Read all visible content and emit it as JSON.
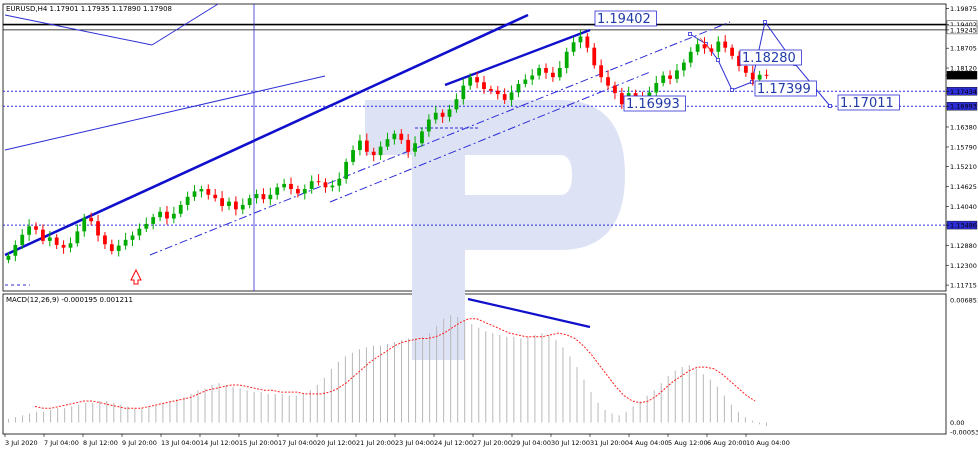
{
  "header": {
    "symbol_line": "EURUSD,H4  1.17901 1.17935 1.17890 1.17908",
    "macd_line": "MACD(12,26,9) -0.000195 0.001211"
  },
  "colors": {
    "bull": "#00aa00",
    "bear": "#ff0000",
    "trend": "#1010cc",
    "level": "#2d2dd6",
    "hist": "#b8b8b8",
    "signal": "#ff2020",
    "watermark": "#dfe4f5"
  },
  "chart_data": [
    {
      "type": "candlestick",
      "title": "EURUSD,H4",
      "ylim": [
        1.116,
        1.1995
      ],
      "y_ticks": [
        "1.19875",
        "1.19402",
        "1.19245",
        "1.18705",
        "1.18120",
        "1.17908",
        "1.17434",
        "1.16993",
        "1.16380",
        "1.15790",
        "1.15210",
        "1.14625",
        "1.14040",
        "1.13486",
        "1.12880",
        "1.12300",
        "1.11715"
      ],
      "x_ticks": [
        "3 Jul 2020",
        "7 Jul 04:00",
        "8 Jul 12:00",
        "9 Jul 20:00",
        "13 Jul 04:00",
        "14 Jul 12:00",
        "15 Jul 20:00",
        "17 Jul 04:00",
        "20 Jul 12:00",
        "21 Jul 20:00",
        "23 Jul 04:00",
        "24 Jul 12:00",
        "27 Jul 20:00",
        "29 Jul 04:00",
        "30 Jul 12:00",
        "31 Jul 20:00",
        "4 Aug 04:00",
        "5 Aug 12:00",
        "6 Aug 20:00",
        "10 Aug 04:00"
      ],
      "closes": [
        1.1258,
        1.129,
        1.132,
        1.1345,
        1.1335,
        1.1302,
        1.1312,
        1.129,
        1.1282,
        1.1295,
        1.133,
        1.137,
        1.136,
        1.1318,
        1.1292,
        1.1272,
        1.1288,
        1.1305,
        1.1318,
        1.1338,
        1.1352,
        1.1372,
        1.1388,
        1.1368,
        1.1382,
        1.1408,
        1.1432,
        1.1448,
        1.1455,
        1.1438,
        1.1428,
        1.1405,
        1.1418,
        1.1395,
        1.1408,
        1.1428,
        1.144,
        1.1425,
        1.1438,
        1.146,
        1.147,
        1.1455,
        1.1442,
        1.1455,
        1.1478,
        1.1475,
        1.146,
        1.1465,
        1.1485,
        1.1535,
        1.157,
        1.1598,
        1.1565,
        1.1555,
        1.158,
        1.1602,
        1.1618,
        1.16,
        1.1565,
        1.159,
        1.1625,
        1.166,
        1.168,
        1.1668,
        1.169,
        1.172,
        1.176,
        1.1785,
        1.177,
        1.175,
        1.1745,
        1.1735,
        1.1718,
        1.174,
        1.1765,
        1.1778,
        1.179,
        1.1812,
        1.1798,
        1.1785,
        1.1812,
        1.186,
        1.1888,
        1.1905,
        1.1872,
        1.182,
        1.1785,
        1.176,
        1.1738,
        1.1705,
        1.1738,
        1.1728,
        1.1705,
        1.174,
        1.1768,
        1.179,
        1.178,
        1.1805,
        1.1828,
        1.186,
        1.1882,
        1.187,
        1.186,
        1.189,
        1.1872,
        1.1848,
        1.1818,
        1.1798,
        1.1778,
        1.1792,
        1.179
      ],
      "levels": [
        {
          "label": "1.19402",
          "y": 1.19402,
          "style": "solid"
        },
        {
          "label": "1.19245",
          "y": 1.19245,
          "style": "solid-thin"
        },
        {
          "label": "1.17434",
          "y": 1.17434,
          "style": "dotted"
        },
        {
          "label": "1.16993",
          "y": 1.16993,
          "style": "dotted"
        },
        {
          "label": "1.13486",
          "y": 1.13486,
          "style": "dotted"
        }
      ],
      "current_price": "1.17908",
      "annotations": [
        "1.19402",
        "1.18280",
        "1.17399",
        "1.16993",
        "1.17011"
      ]
    },
    {
      "type": "bar",
      "title": "MACD(12,26,9)",
      "ylim": [
        -0.000531,
        0.006851
      ],
      "y_ticks": [
        "0.006851",
        "0.00",
        "-0.000531"
      ],
      "histogram": [
        0.0002,
        0.0003,
        0.0004,
        0.0005,
        0.0006,
        0.0006,
        0.0007,
        0.0008,
        0.0008,
        0.0009,
        0.001,
        0.0011,
        0.0011,
        0.0012,
        0.0012,
        0.0011,
        0.001,
        0.0009,
        0.0008,
        0.0008,
        0.0009,
        0.001,
        0.0011,
        0.0012,
        0.0013,
        0.0014,
        0.0016,
        0.0018,
        0.0019,
        0.0021,
        0.0022,
        0.0021,
        0.002,
        0.0019,
        0.0018,
        0.0017,
        0.0017,
        0.0016,
        0.0016,
        0.0016,
        0.0015,
        0.0015,
        0.0016,
        0.0018,
        0.0021,
        0.0025,
        0.003,
        0.0034,
        0.0037,
        0.0039,
        0.0041,
        0.0042,
        0.0043,
        0.0043,
        0.0044,
        0.0045,
        0.0046,
        0.0047,
        0.0047,
        0.0048,
        0.005,
        0.0054,
        0.0058,
        0.006,
        0.0059,
        0.0057,
        0.0055,
        0.0053,
        0.0051,
        0.005,
        0.0049,
        0.0048,
        0.0048,
        0.0047,
        0.0048,
        0.0049,
        0.005,
        0.0049,
        0.0046,
        0.0042,
        0.0037,
        0.0031,
        0.0024,
        0.0017,
        0.0011,
        0.0007,
        0.0005,
        0.0004,
        0.0006,
        0.0009,
        0.0012,
        0.0015,
        0.0018,
        0.0022,
        0.0026,
        0.0029,
        0.0031,
        0.0032,
        0.003,
        0.0027,
        0.0024,
        0.002,
        0.0015,
        0.001,
        0.0006,
        0.0003,
        0.0001,
        -0.0001,
        -0.0002
      ],
      "signal": [
        0.0009,
        0.0008,
        0.0008,
        0.0009,
        0.001,
        0.0011,
        0.0012,
        0.0012,
        0.0011,
        0.001,
        0.0009,
        0.0008,
        0.0008,
        0.0008,
        0.0009,
        0.001,
        0.0011,
        0.0012,
        0.0013,
        0.0014,
        0.0016,
        0.0018,
        0.0019,
        0.002,
        0.0021,
        0.0021,
        0.002,
        0.0019,
        0.0018,
        0.0018,
        0.0017,
        0.0017,
        0.0017,
        0.0016,
        0.0016,
        0.0016,
        0.0017,
        0.0019,
        0.0022,
        0.0026,
        0.003,
        0.0034,
        0.0037,
        0.004,
        0.0043,
        0.0045,
        0.0046,
        0.0047,
        0.0047,
        0.0048,
        0.005,
        0.0053,
        0.0056,
        0.0058,
        0.0058,
        0.0056,
        0.0054,
        0.0052,
        0.005,
        0.0049,
        0.0048,
        0.0048,
        0.0048,
        0.0049,
        0.005,
        0.0049,
        0.0047,
        0.0043,
        0.0038,
        0.0032,
        0.0026,
        0.002,
        0.0015,
        0.0012,
        0.0011,
        0.0012,
        0.0015,
        0.0019,
        0.0023,
        0.0026,
        0.0029,
        0.0031,
        0.0031,
        0.003,
        0.0027,
        0.0023,
        0.0019,
        0.0015,
        0.0012
      ]
    }
  ],
  "watermark_label": "RoboForex logo"
}
